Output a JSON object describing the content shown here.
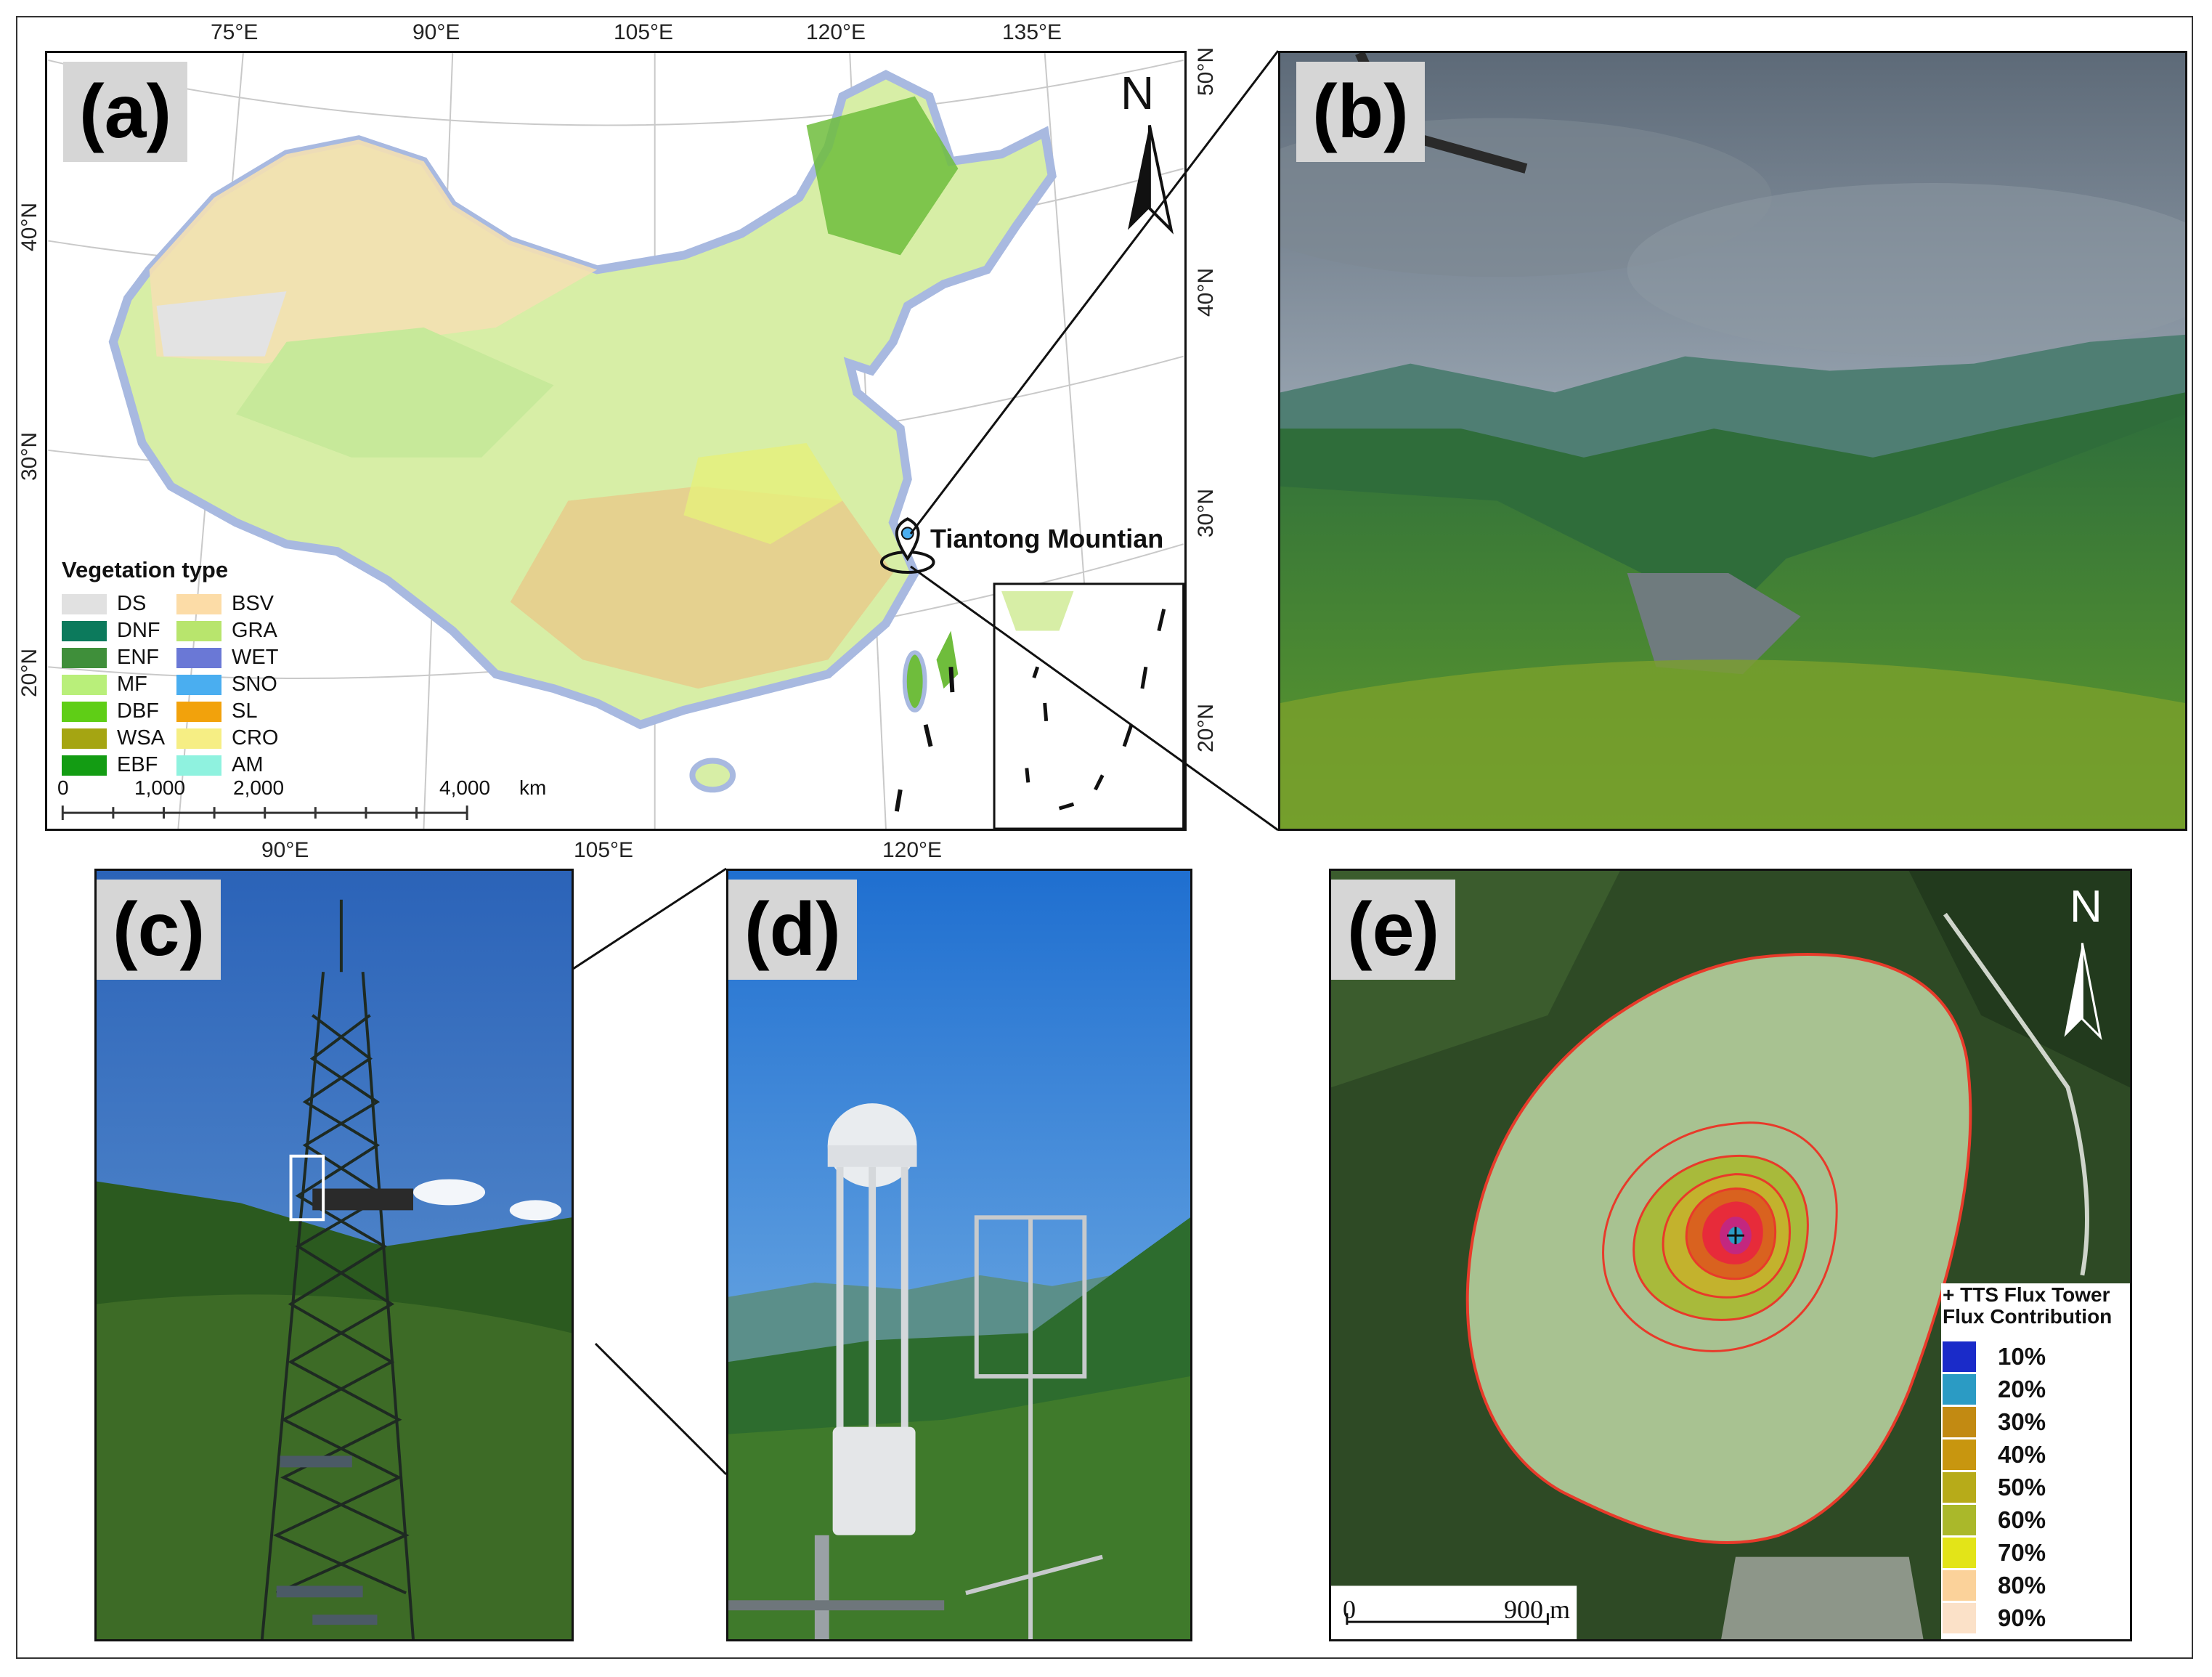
{
  "panels": {
    "a": {
      "label": "(a)",
      "north": "N",
      "top_lon": [
        "75°E",
        "90°E",
        "105°E",
        "120°E",
        "135°E"
      ],
      "bottom_lon": [
        "90°E",
        "105°E",
        "120°E"
      ],
      "left_lat": [
        "40°N",
        "30°N",
        "20°N"
      ],
      "right_lat": [
        "50°N",
        "40°N",
        "30°N",
        "20°N"
      ],
      "site_label": "Tiantong Mountian",
      "legend_title": "Vegetation type",
      "legend": [
        {
          "code": "DS",
          "color": "#e1e1e1"
        },
        {
          "code": "BSV",
          "color": "#fcdca7"
        },
        {
          "code": "DNF",
          "color": "#0c7a5c"
        },
        {
          "code": "GRA",
          "color": "#b8e56d"
        },
        {
          "code": "ENF",
          "color": "#3f8f3a"
        },
        {
          "code": "WET",
          "color": "#6a78d6"
        },
        {
          "code": "MF",
          "color": "#b9ef7a"
        },
        {
          "code": "SNO",
          "color": "#4aaef0"
        },
        {
          "code": "DBF",
          "color": "#5fce16"
        },
        {
          "code": "SL",
          "color": "#f2a20c"
        },
        {
          "code": "WSA",
          "color": "#a5a512"
        },
        {
          "code": "CRO",
          "color": "#f6ee84"
        },
        {
          "code": "EBF",
          "color": "#139c13"
        },
        {
          "code": "AM",
          "color": "#8ff2df"
        }
      ],
      "scale_labels": [
        "0",
        "1,000",
        "2,000",
        "4,000",
        "km"
      ]
    },
    "b": {
      "label": "(b)"
    },
    "c": {
      "label": "(c)"
    },
    "d": {
      "label": "(d)"
    },
    "e": {
      "label": "(e)",
      "north": "N",
      "legend_title_1": "+ TTS Flux Tower",
      "legend_title_2": "Flux Contribution",
      "legend": [
        {
          "pct": "10%",
          "color": "#1a2bc9"
        },
        {
          "pct": "20%",
          "color": "#2b9bc4"
        },
        {
          "pct": "30%",
          "color": "#c28a12"
        },
        {
          "pct": "40%",
          "color": "#c8960f"
        },
        {
          "pct": "50%",
          "color": "#b7ab19"
        },
        {
          "pct": "60%",
          "color": "#aab82a"
        },
        {
          "pct": "70%",
          "color": "#e3e418"
        },
        {
          "pct": "80%",
          "color": "#fbd29a"
        },
        {
          "pct": "90%",
          "color": "#fbe1c8"
        }
      ],
      "scale_start": "0",
      "scale_end": "900 m"
    }
  }
}
